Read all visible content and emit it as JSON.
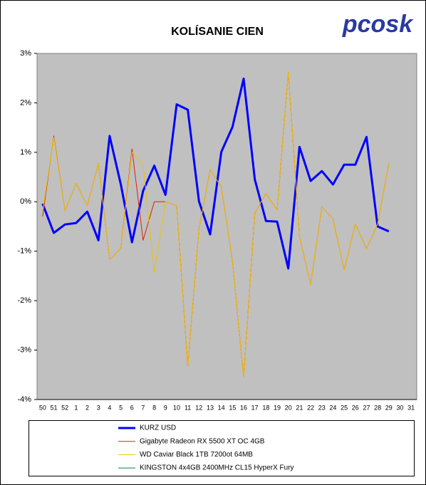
{
  "chart_data": {
    "type": "line",
    "title": "KOLÍSANIE CIEN",
    "logo": "pcosk",
    "categories": [
      "50",
      "51",
      "52",
      "1",
      "2",
      "3",
      "4",
      "5",
      "6",
      "7",
      "8",
      "9",
      "10",
      "11",
      "12",
      "13",
      "14",
      "15",
      "16",
      "17",
      "18",
      "19",
      "20",
      "21",
      "22",
      "23",
      "24",
      "25",
      "26",
      "27",
      "28",
      "29",
      "30",
      "31"
    ],
    "ylim": [
      -4,
      3
    ],
    "yticks": [
      {
        "value": -4,
        "label": "-4%"
      },
      {
        "value": -3,
        "label": "-3%"
      },
      {
        "value": -2,
        "label": "-2%"
      },
      {
        "value": -1,
        "label": "-1%"
      },
      {
        "value": 0,
        "label": "0%"
      },
      {
        "value": 1,
        "label": "1%"
      },
      {
        "value": 2,
        "label": "2%"
      },
      {
        "value": 3,
        "label": "3%"
      }
    ],
    "series": [
      {
        "name": "KURZ USD",
        "color": "#0000ff",
        "line_width": 3,
        "values": [
          -0.04,
          -0.63,
          -0.46,
          -0.43,
          -0.2,
          -0.78,
          1.33,
          0.35,
          -0.82,
          0.22,
          0.73,
          0.14,
          1.97,
          1.86,
          0.01,
          -0.66,
          1.01,
          1.51,
          2.49,
          0.45,
          -0.39,
          -0.4,
          -1.35,
          1.11,
          0.42,
          0.62,
          0.35,
          0.75,
          0.75,
          1.31,
          -0.5,
          -0.6,
          null,
          null
        ]
      },
      {
        "name": "Gigabyte Radeon RX 5500 XT OC 4GB",
        "color": "#e02000",
        "line_width": 1,
        "values": [
          -0.3,
          1.33,
          -0.18,
          0.37,
          -0.08,
          0.78,
          -1.17,
          -0.94,
          1.07,
          -0.78,
          0.0,
          0.0,
          -0.08,
          -3.33,
          -0.55,
          0.65,
          0.3,
          -1.2,
          -3.55,
          -0.23,
          0.17,
          -0.17,
          2.62,
          -0.7,
          -1.68,
          -0.1,
          -0.35,
          -1.38,
          -0.45,
          -0.95,
          -0.45,
          0.77,
          null,
          null
        ]
      },
      {
        "name": "WD Caviar Black 1TB 7200ot 64MB",
        "color": "#f0c000",
        "line_width": 1,
        "values": [
          -0.2,
          1.3,
          -0.18,
          0.37,
          -0.08,
          0.78,
          -1.17,
          -0.94,
          1.0,
          0.75,
          -1.43,
          0.0,
          -0.08,
          -3.33,
          -0.55,
          0.65,
          0.3,
          -1.2,
          -3.55,
          -0.23,
          0.17,
          -0.17,
          2.62,
          -0.7,
          -1.68,
          -0.1,
          -0.35,
          -1.38,
          -0.45,
          -0.95,
          -0.45,
          0.77,
          null,
          null
        ]
      },
      {
        "name": "KINGSTON 4x4GB 2400MHz CL15 HyperX Fury",
        "color": "#008040",
        "line_width": 1,
        "values": [
          null,
          null,
          null,
          null,
          null,
          null,
          null,
          null,
          null,
          null,
          null,
          null,
          null,
          null,
          null,
          null,
          null,
          null,
          null,
          null,
          null,
          null,
          null,
          null,
          null,
          null,
          null,
          null,
          null,
          null,
          null,
          null,
          null,
          null
        ]
      }
    ]
  }
}
